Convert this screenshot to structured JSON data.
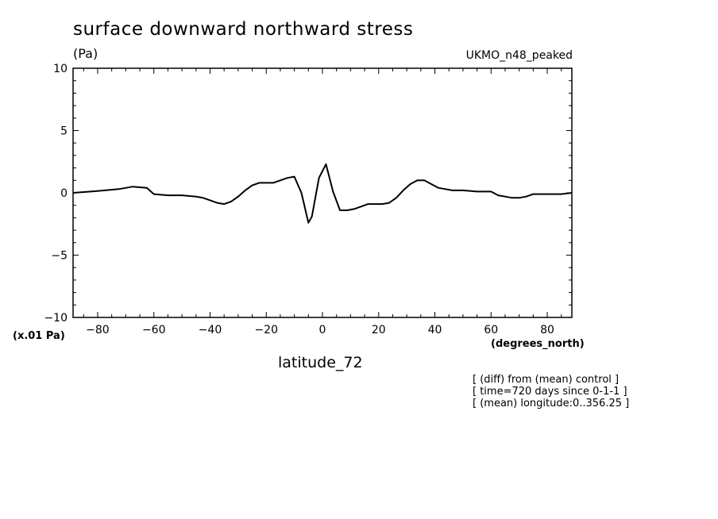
{
  "header": {
    "title": "surface downward northward stress",
    "units": "(Pa)",
    "model": "UKMO_n48_peaked"
  },
  "axis_notes": {
    "y_scale": "(x.01 Pa)",
    "x_units": "(degrees_north)",
    "x_title": "latitude_72"
  },
  "notes": [
    "[ (diff) from (mean) control ]",
    "[ time=720 days since 0-1-1 ]",
    "[ (mean) longitude:0..356.25 ]"
  ],
  "chart_data": {
    "type": "line",
    "title": "surface downward northward stress",
    "xlabel": "latitude_72",
    "ylabel": "(Pa)",
    "xlim": [
      -88.75,
      88.75
    ],
    "ylim": [
      -10,
      10
    ],
    "xticks": [
      -80,
      -60,
      -40,
      -20,
      0,
      20,
      40,
      60,
      80
    ],
    "xtick_labels": [
      "-80",
      "-60",
      "-40",
      "-20",
      "0",
      "20",
      "40",
      "60",
      "80"
    ],
    "yticks": [
      -10,
      -5,
      0,
      5,
      10
    ],
    "ytick_labels": [
      "-10",
      "-5",
      "0",
      "5",
      "10"
    ],
    "line_color": "#000000",
    "series": [
      {
        "x": [
          -88.75,
          -82.5,
          -77.5,
          -72.5,
          -67.5,
          -62.5,
          -60,
          -55,
          -50,
          -45,
          -42.5,
          -40,
          -37.5,
          -35,
          -32.5,
          -30,
          -27.5,
          -25,
          -22.5,
          -20,
          -17.5,
          -15,
          -12.5,
          -10,
          -7.5,
          -5,
          -3.75,
          -1.25,
          1.25,
          3.75,
          6.25,
          8.75,
          11.25,
          13.75,
          16.25,
          18.75,
          21.25,
          23.75,
          26.25,
          28.75,
          31.25,
          33.75,
          36.25,
          38.75,
          41.25,
          43.75,
          46.25,
          50,
          55,
          60,
          62.5,
          65,
          67.5,
          70,
          72.5,
          75,
          80,
          85,
          88.75
        ],
        "y": [
          0,
          0.1,
          0.2,
          0.3,
          0.5,
          0.4,
          -0.1,
          -0.2,
          -0.2,
          -0.3,
          -0.4,
          -0.6,
          -0.8,
          -0.9,
          -0.7,
          -0.3,
          0.2,
          0.6,
          0.8,
          0.8,
          0.8,
          1.0,
          1.2,
          1.3,
          0,
          -2.4,
          -1.9,
          1.2,
          2.3,
          0.1,
          -1.4,
          -1.4,
          -1.3,
          -1.1,
          -0.9,
          -0.9,
          -0.9,
          -0.8,
          -0.4,
          0.2,
          0.7,
          1.0,
          1.0,
          0.7,
          0.4,
          0.3,
          0.2,
          0.2,
          0.1,
          0.1,
          -0.2,
          -0.3,
          -0.4,
          -0.4,
          -0.3,
          -0.1,
          -0.1,
          -0.1,
          0
        ]
      }
    ]
  }
}
